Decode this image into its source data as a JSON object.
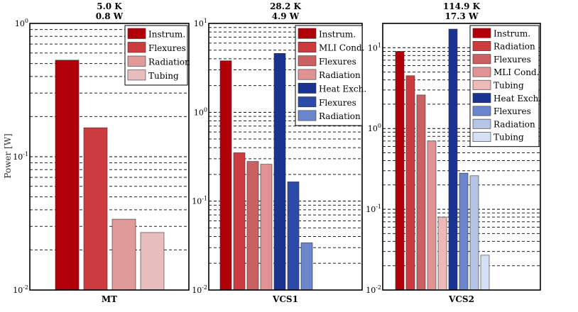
{
  "ylabel": "Power [W]",
  "chart_data": [
    {
      "type": "bar",
      "title_lines": [
        "5.0 K",
        "0.8 W"
      ],
      "xlabel": "MT",
      "yscale": "log",
      "ylim": [
        0.01,
        1
      ],
      "ytick_labels": [
        "10^-2",
        "10^-1",
        "10^0"
      ],
      "categories": [
        "Instrum.",
        "Flexures",
        "Radiation",
        "Tubing"
      ],
      "values": [
        0.53,
        0.165,
        0.034,
        0.027
      ],
      "colors": [
        "#b2000a",
        "#cc3b3d",
        "#e19a9a",
        "#e8bdbd"
      ],
      "legend": [
        "Instrum.",
        "Flexures",
        "Radiation",
        "Tubing"
      ]
    },
    {
      "type": "bar",
      "title_lines": [
        "28.2 K",
        "4.9 W"
      ],
      "xlabel": "VCS1",
      "yscale": "log",
      "ylim": [
        0.01,
        10
      ],
      "ytick_labels": [
        "10^-2",
        "10^-1",
        "10^0",
        "10^1"
      ],
      "categories": [
        "Instrum.",
        "MLI Cond.",
        "Flexures",
        "Radiation",
        "Heat Exch.",
        "Flexures",
        "Radiation"
      ],
      "values": [
        3.8,
        0.35,
        0.28,
        0.26,
        4.6,
        0.165,
        0.034
      ],
      "colors": [
        "#b2000a",
        "#cc3b3d",
        "#cb6062",
        "#e19393",
        "#1a3391",
        "#2c4aa8",
        "#6b86cc"
      ],
      "legend": [
        "Instrum.",
        "MLI Cond.",
        "Flexures",
        "Radiation",
        "Heat Exch.",
        "Flexures",
        "Radiation"
      ]
    },
    {
      "type": "bar",
      "title_lines": [
        "114.9 K",
        "17.3 W"
      ],
      "xlabel": "VCS2",
      "yscale": "log",
      "ylim": [
        0.01,
        20
      ],
      "ytick_labels": [
        "10^-2",
        "10^-1",
        "10^0",
        "10^1"
      ],
      "categories": [
        "Instrum.",
        "Radiation",
        "Flexures",
        "MLI Cond.",
        "Tubing",
        "Heat Exch.",
        "Flexures",
        "Radiation",
        "Tubing"
      ],
      "values": [
        9.0,
        4.5,
        2.6,
        0.7,
        0.08,
        17.0,
        0.28,
        0.26,
        0.027
      ],
      "colors": [
        "#b2000a",
        "#cc3b3d",
        "#cb6062",
        "#e19393",
        "#eeb9b9",
        "#1a3391",
        "#6b86cc",
        "#b6c4e6",
        "#d6e0f5"
      ],
      "legend": [
        "Instrum.",
        "Radiation",
        "Flexures",
        "MLI Cond.",
        "Tubing",
        "Heat Exch.",
        "Flexures",
        "Radiation",
        "Tubing"
      ]
    }
  ]
}
